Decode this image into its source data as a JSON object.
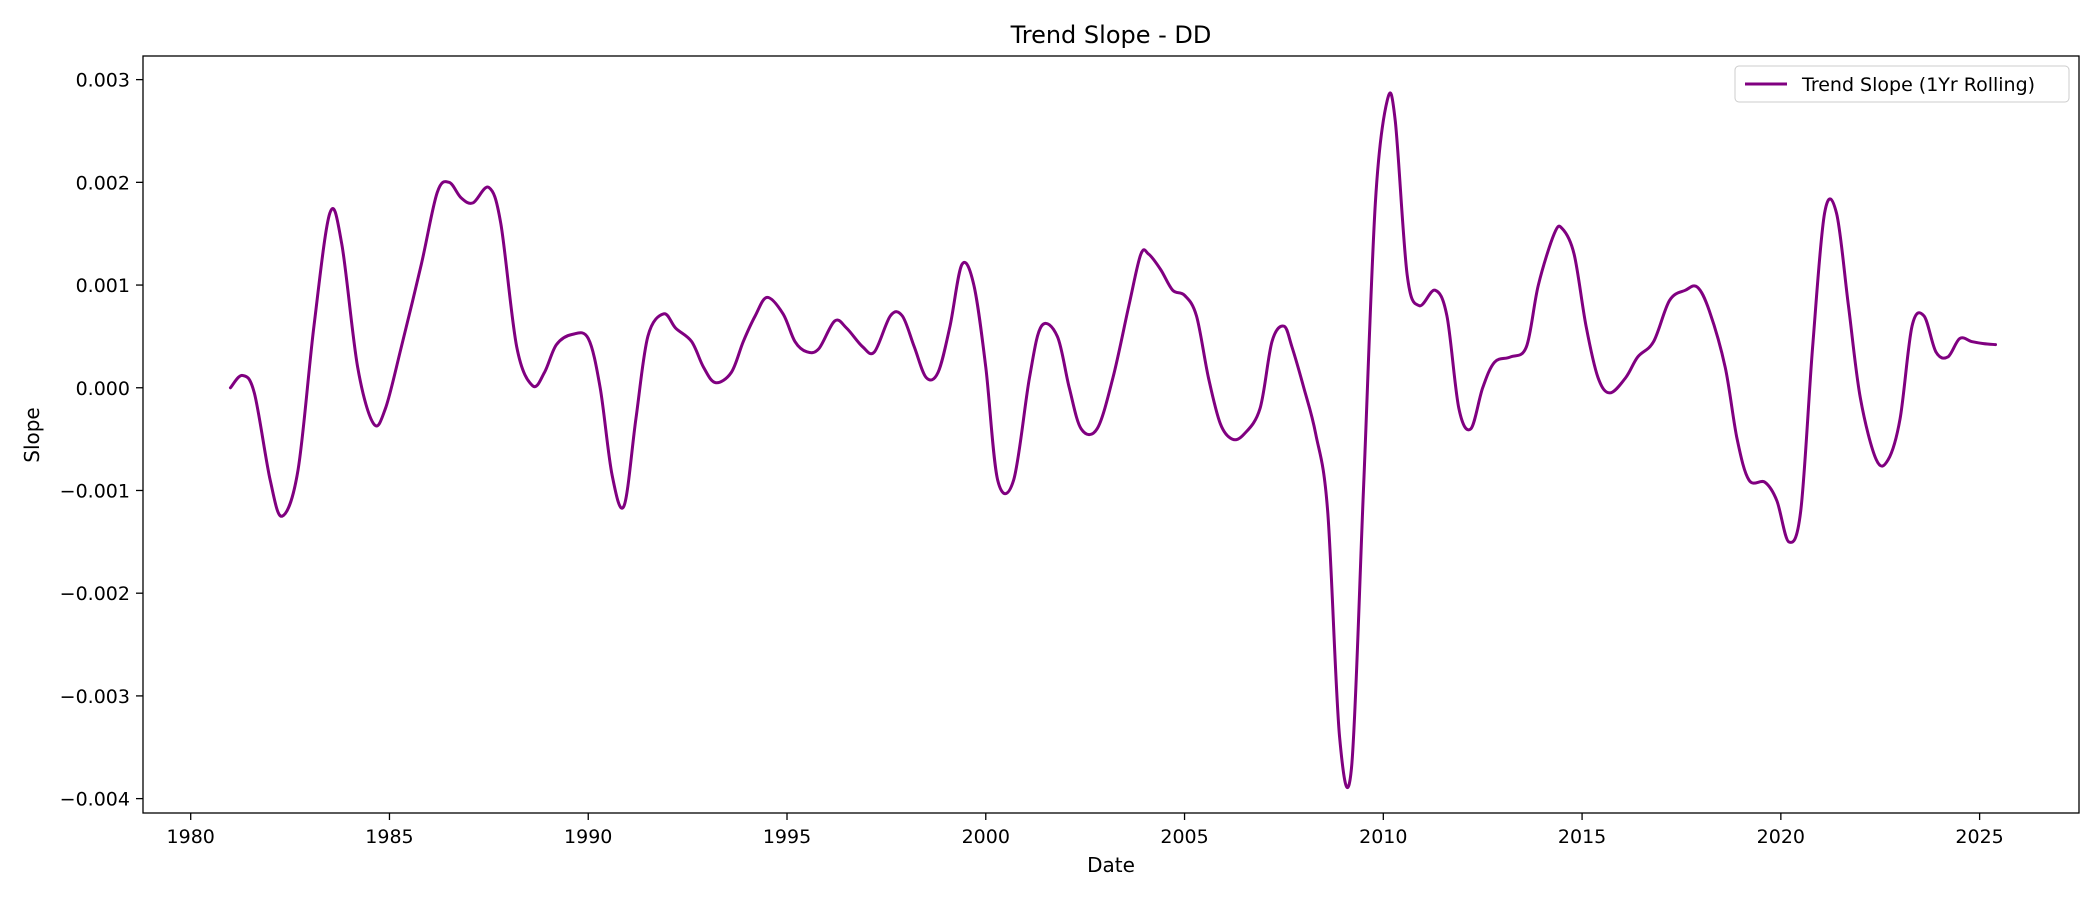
{
  "chart_data": {
    "type": "line",
    "title": "Trend Slope - DD",
    "xlabel": "Date",
    "ylabel": "Slope",
    "xlim": [
      1978.8,
      1982.8
    ],
    "x_range": [
      1978.8,
      2027.5
    ],
    "ylim": [
      -0.00414,
      0.00323
    ],
    "x_ticks": [
      1980,
      1985,
      1990,
      1995,
      2000,
      2005,
      2010,
      2015,
      2020,
      2025
    ],
    "x_tick_labels": [
      "1980",
      "1985",
      "1990",
      "1995",
      "2000",
      "2005",
      "2010",
      "2015",
      "2020",
      "2025"
    ],
    "y_ticks": [
      0.003,
      0.002,
      0.001,
      0.0,
      -0.001,
      -0.002,
      -0.003,
      -0.004
    ],
    "y_tick_labels": [
      "0.003",
      "0.002",
      "0.001",
      "0.000",
      "−0.001",
      "−0.002",
      "−0.003",
      "−0.004"
    ],
    "grid": false,
    "legend_position": "top-right",
    "series": [
      {
        "name": "Trend Slope (1Yr Rolling)",
        "color": "#800080",
        "x": [
          1981.0,
          1981.3,
          1981.6,
          1982.0,
          1982.3,
          1982.7,
          1983.1,
          1983.5,
          1983.8,
          1984.2,
          1984.6,
          1984.9,
          1985.3,
          1985.8,
          1986.2,
          1986.5,
          1986.8,
          1987.1,
          1987.5,
          1987.8,
          1988.2,
          1988.6,
          1988.9,
          1989.2,
          1989.6,
          1990.0,
          1990.3,
          1990.6,
          1990.9,
          1991.2,
          1991.5,
          1991.9,
          1992.2,
          1992.6,
          1992.9,
          1993.2,
          1993.6,
          1993.9,
          1994.2,
          1994.5,
          1994.9,
          1995.2,
          1995.5,
          1995.8,
          1996.2,
          1996.5,
          1996.9,
          1997.2,
          1997.6,
          1997.9,
          1998.2,
          1998.5,
          1998.8,
          1999.1,
          1999.4,
          1999.7,
          2000.0,
          2000.3,
          2000.7,
          2001.1,
          2001.4,
          2001.8,
          2002.1,
          2002.4,
          2002.8,
          2003.2,
          2003.6,
          2003.9,
          2004.1,
          2004.4,
          2004.7,
          2005.0,
          2005.3,
          2005.6,
          2005.9,
          2006.2,
          2006.5,
          2006.9,
          2007.2,
          2007.5,
          2007.7,
          2008.0,
          2008.3,
          2008.6,
          2008.9,
          2009.2,
          2009.5,
          2009.8,
          2010.1,
          2010.3,
          2010.6,
          2010.9,
          2011.3,
          2011.6,
          2011.9,
          2012.2,
          2012.5,
          2012.8,
          2013.2,
          2013.6,
          2013.9,
          2014.3,
          2014.5,
          2014.8,
          2015.1,
          2015.4,
          2015.7,
          2016.1,
          2016.4,
          2016.8,
          2017.2,
          2017.6,
          2017.9,
          2018.2,
          2018.6,
          2018.9,
          2019.2,
          2019.6,
          2019.9,
          2020.2,
          2020.5,
          2020.8,
          2021.1,
          2021.4,
          2021.7,
          2022.0,
          2022.4,
          2022.7,
          2023.0,
          2023.3,
          2023.6,
          2023.9,
          2024.2,
          2024.5,
          2024.8,
          2025.1,
          2025.4
        ],
        "y": [
          0.0,
          0.00012,
          -5e-05,
          -0.0009,
          -0.00125,
          -0.0008,
          0.0006,
          0.0017,
          0.0014,
          0.0002,
          -0.00035,
          -0.0002,
          0.0004,
          0.0012,
          0.0019,
          0.002,
          0.00185,
          0.0018,
          0.00195,
          0.0016,
          0.0004,
          2e-05,
          0.00015,
          0.00042,
          0.00052,
          0.00048,
          0.0,
          -0.00085,
          -0.00115,
          -0.0003,
          0.0005,
          0.00072,
          0.00058,
          0.00045,
          0.0002,
          5e-05,
          0.00015,
          0.00045,
          0.0007,
          0.00088,
          0.00072,
          0.00045,
          0.00035,
          0.00038,
          0.00065,
          0.00058,
          0.0004,
          0.00035,
          0.0007,
          0.0007,
          0.0004,
          0.0001,
          0.00015,
          0.0006,
          0.0012,
          0.001,
          0.0002,
          -0.0009,
          -0.0009,
          0.0001,
          0.0006,
          0.0005,
          0.0,
          -0.0004,
          -0.0004,
          0.0001,
          0.0008,
          0.0013,
          0.0013,
          0.00115,
          0.00095,
          0.0009,
          0.0007,
          0.0001,
          -0.00035,
          -0.0005,
          -0.00045,
          -0.0002,
          0.00045,
          0.0006,
          0.0004,
          0.0,
          -0.00045,
          -0.0012,
          -0.0034,
          -0.0037,
          -0.001,
          0.0018,
          0.0028,
          0.0026,
          0.0011,
          0.0008,
          0.00095,
          0.0007,
          -0.0002,
          -0.0004,
          0.0,
          0.00025,
          0.0003,
          0.0004,
          0.001,
          0.0015,
          0.00155,
          0.0013,
          0.0006,
          0.0001,
          -5e-05,
          0.0001,
          0.0003,
          0.00045,
          0.00085,
          0.00095,
          0.00098,
          0.00075,
          0.0002,
          -0.0005,
          -0.0009,
          -0.00092,
          -0.0011,
          -0.0015,
          -0.0012,
          0.0004,
          0.0017,
          0.0017,
          0.0008,
          -0.0001,
          -0.0007,
          -0.0007,
          -0.0003,
          0.0006,
          0.0007,
          0.00035,
          0.0003,
          0.00048,
          0.00045,
          0.00043,
          0.00042
        ]
      }
    ]
  }
}
